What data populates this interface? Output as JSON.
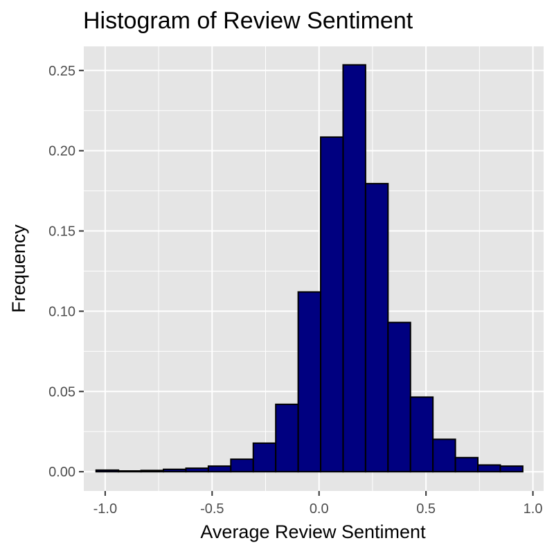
{
  "chart_data": {
    "type": "bar",
    "title": "Histogram of Review Sentiment",
    "xlabel": "Average Review Sentiment",
    "ylabel": "Frequency",
    "xlim": [
      -1.1,
      1.05
    ],
    "ylim": [
      -0.012,
      0.265
    ],
    "x_ticks": [
      -1.0,
      -0.5,
      0.0,
      0.5,
      1.0
    ],
    "x_tick_labels": [
      "-1.0",
      "-0.5",
      "0.0",
      "0.5",
      "1.0"
    ],
    "y_ticks": [
      0.0,
      0.05,
      0.1,
      0.15,
      0.2,
      0.25
    ],
    "y_tick_labels": [
      "0.00",
      "0.05",
      "0.10",
      "0.15",
      "0.20",
      "0.25"
    ],
    "bin_width": 0.105,
    "bins": [
      {
        "x": -0.99,
        "value": 0.001
      },
      {
        "x": -0.885,
        "value": 0.0005
      },
      {
        "x": -0.78,
        "value": 0.0008
      },
      {
        "x": -0.675,
        "value": 0.0015
      },
      {
        "x": -0.57,
        "value": 0.0022
      },
      {
        "x": -0.465,
        "value": 0.0035
      },
      {
        "x": -0.36,
        "value": 0.0078
      },
      {
        "x": -0.255,
        "value": 0.0178
      },
      {
        "x": -0.15,
        "value": 0.042
      },
      {
        "x": -0.045,
        "value": 0.112
      },
      {
        "x": 0.06,
        "value": 0.2085
      },
      {
        "x": 0.165,
        "value": 0.2535
      },
      {
        "x": 0.27,
        "value": 0.1795
      },
      {
        "x": 0.375,
        "value": 0.093
      },
      {
        "x": 0.48,
        "value": 0.0465
      },
      {
        "x": 0.585,
        "value": 0.0202
      },
      {
        "x": 0.69,
        "value": 0.0088
      },
      {
        "x": 0.795,
        "value": 0.0042
      },
      {
        "x": 0.9,
        "value": 0.0035
      }
    ],
    "fill_color": "#000080",
    "edge_color": "#000000",
    "panel_background": "#e5e5e5",
    "grid": true,
    "legend": "none"
  }
}
